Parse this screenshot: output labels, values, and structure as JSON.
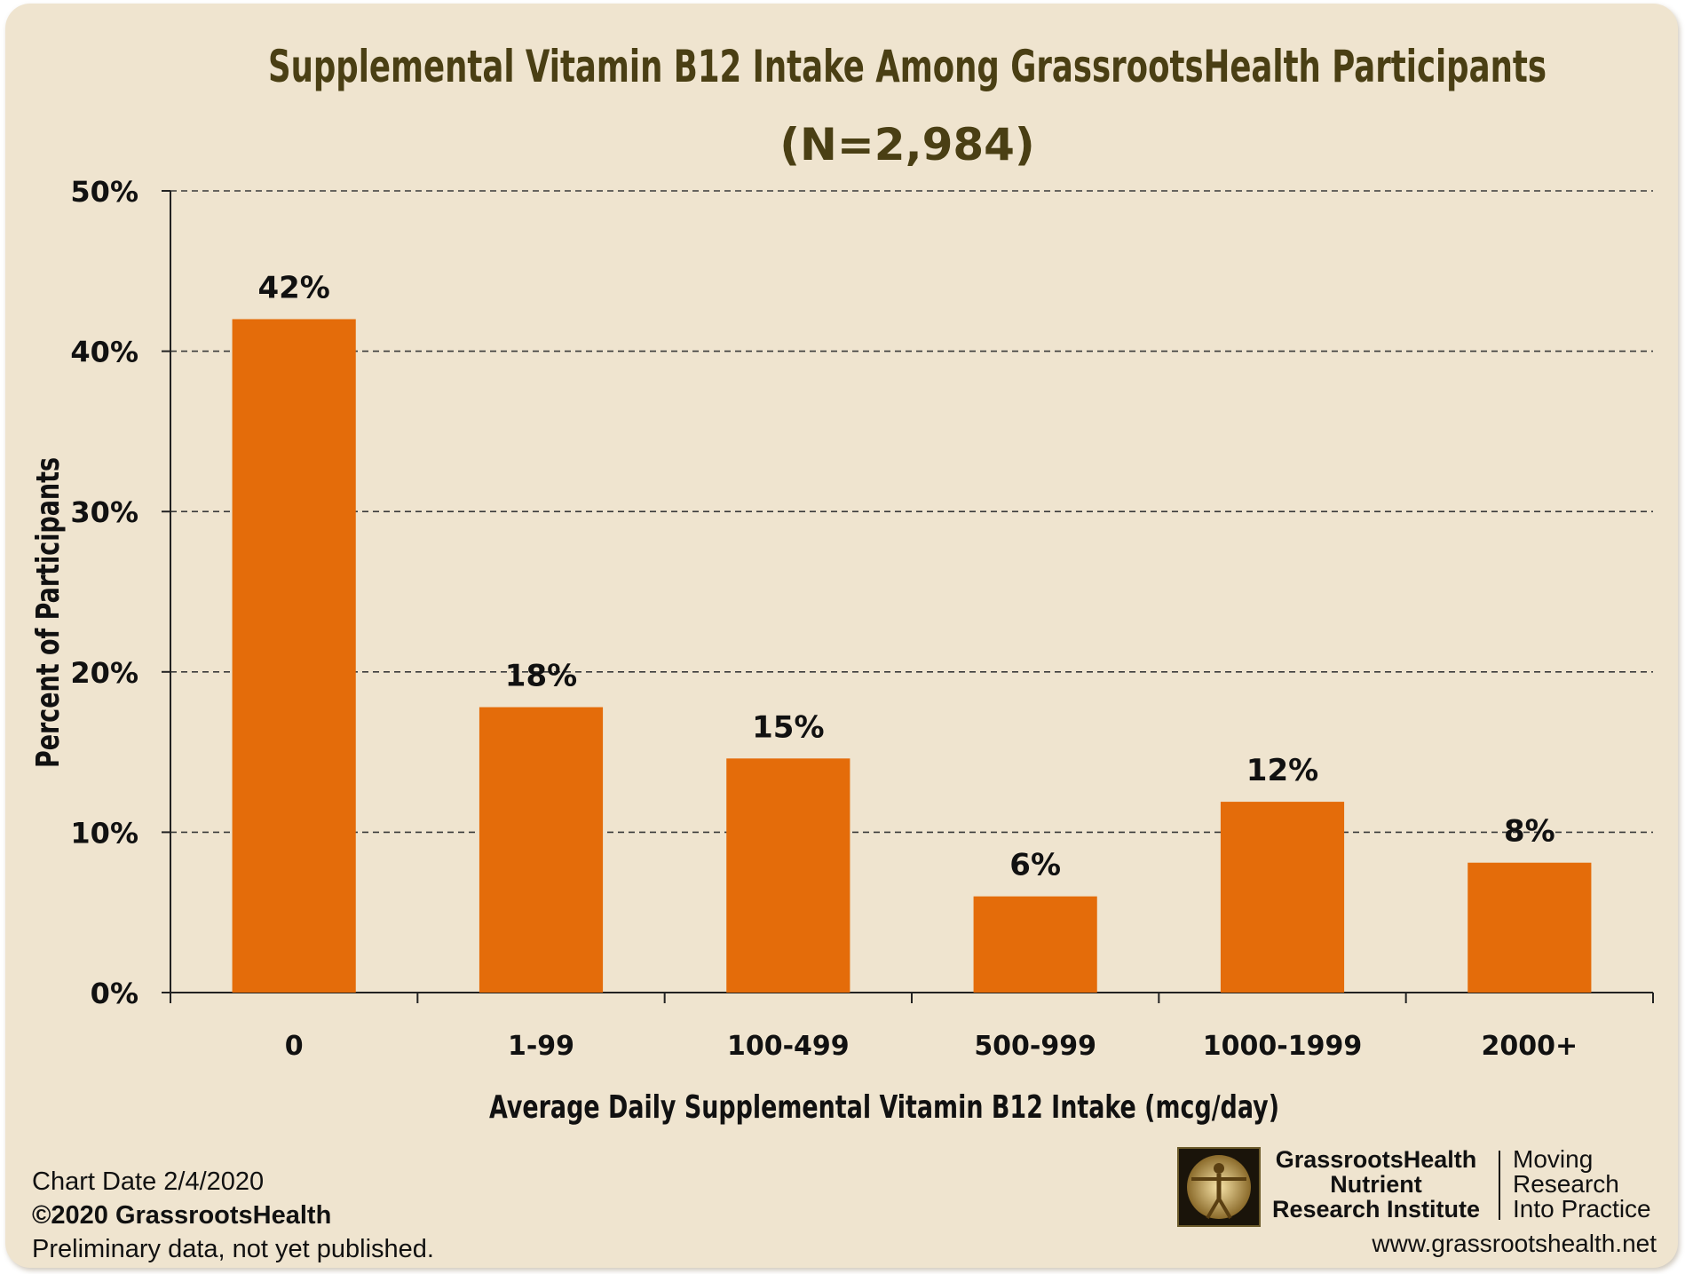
{
  "chart_data": {
    "type": "bar",
    "title": "Supplemental Vitamin B12 Intake Among GrassrootsHealth Participants",
    "subtitle": "(N=2,984)",
    "xlabel": "Average Daily Supplemental Vitamin B12 Intake (mcg/day)",
    "ylabel": "Percent of Participants",
    "categories": [
      "0",
      "1-99",
      "100-499",
      "500-999",
      "1000-1999",
      "2000+"
    ],
    "values": [
      42,
      17.8,
      14.6,
      6.0,
      11.9,
      8.1
    ],
    "data_labels": [
      "42%",
      "18%",
      "15%",
      "6%",
      "12%",
      "8%"
    ],
    "ylim": [
      0,
      50
    ],
    "yticks": [
      0,
      10,
      20,
      30,
      40,
      50
    ],
    "ytick_labels": [
      "0%",
      "10%",
      "20%",
      "30%",
      "40%",
      "50%"
    ],
    "grid": "horizontal dashed",
    "bar_color": "#e46c0a",
    "legend": "none"
  },
  "footer": {
    "chart_date": "Chart Date 2/4/2020",
    "copyright": "©2020 GrassrootsHealth",
    "note": "Preliminary data, not yet published.",
    "org_line1": "GrassrootsHealth",
    "org_line2": "Nutrient",
    "org_line3": "Research Institute",
    "tagline1": "Moving",
    "tagline2": "Research",
    "tagline3": "Into Practice",
    "website": "www.grassrootshealth.net",
    "logo_icon": "vitruvian-man-logo-icon"
  }
}
